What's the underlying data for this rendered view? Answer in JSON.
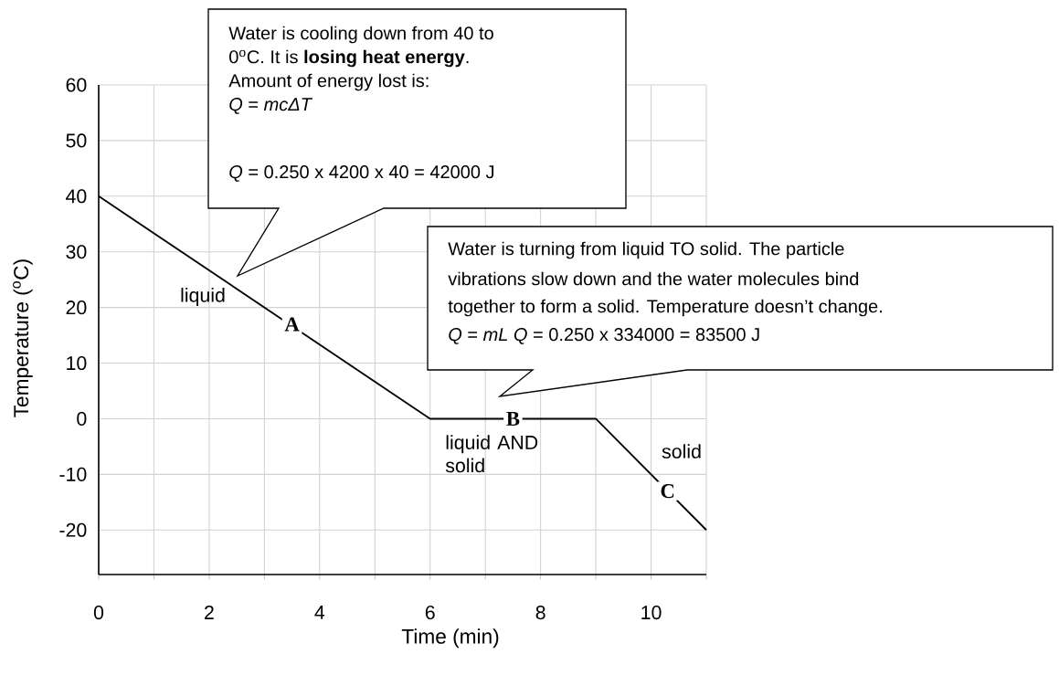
{
  "chart_data": {
    "type": "line",
    "xlabel": "Time (min)",
    "ylabel": "Temperature ($^{o}$C)",
    "x": [
      0,
      6,
      9,
      11
    ],
    "series": [
      {
        "color": "#000000",
        "values": [
          40,
          0,
          0,
          -20
        ]
      }
    ],
    "xlim": [
      0,
      11
    ],
    "ylim": [
      -28,
      60
    ],
    "xticks": [
      0,
      {
        "value": 1,
        "label": null
      },
      2,
      {
        "value": 3,
        "label": null
      },
      4,
      {
        "value": 5,
        "label": null
      },
      6,
      {
        "value": 7,
        "label": null
      },
      8,
      {
        "value": 9,
        "label": null
      },
      10,
      {
        "value": 11,
        "label": null
      }
    ],
    "yticks": [
      -20,
      -10,
      0,
      10,
      20,
      30,
      40,
      50,
      60
    ],
    "grid": true,
    "annotations": [
      "Water is cooling down from 40 to",
      "0$^{o}$C.  It is **losing heat energy**.",
      "Amount of energy lost is:",
      "*Q* = *mcΔT*",
      "*Q* = 0.250 x 4200 x 40 = 42000 J",
      "Water is turning from liquid TO solid.  The particle",
      "vibrations slow down and the water molecules bind",
      "together to form a solid. Temperature doesn’t change.",
      "*Q* = *mL*  *Q* = 0.250 x 334000 = 83500 J",
      "liquid",
      "liquid AND solid",
      "solid",
      {
        "text": "A",
        "x": 3.5,
        "y": 17
      },
      {
        "text": "B",
        "x": 7.5,
        "y": 0
      },
      {
        "text": "C",
        "x": 10.3,
        "y": -13
      }
    ]
  }
}
